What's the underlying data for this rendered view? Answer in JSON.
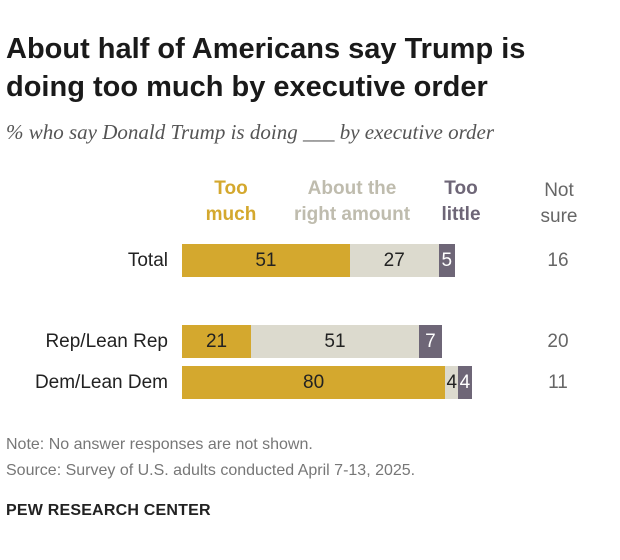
{
  "title": "About half of Americans say Trump is doing too much by executive order",
  "subtitle": "% who say Donald Trump is doing ___ by executive order",
  "colors": {
    "too_much": "#d4a82e",
    "right_amount": "#dcdace",
    "too_little": "#6e6677",
    "header_too_much": "#d4a82e",
    "header_right_amount": "#bfbcae",
    "header_too_little": "#6e6677",
    "not_sure": "#666666"
  },
  "headers": {
    "too_much": "Too\nmuch",
    "right_amount": "About the\nright amount",
    "too_little": "Too\nlittle",
    "not_sure": "Not\nsure"
  },
  "chart_data": {
    "type": "bar",
    "orientation": "horizontal",
    "stacked": true,
    "categories": [
      "Total",
      "Rep/Lean Rep",
      "Dem/Lean Dem"
    ],
    "series": [
      {
        "name": "Too much",
        "values": [
          51,
          21,
          80
        ]
      },
      {
        "name": "About the right amount",
        "values": [
          27,
          51,
          4
        ]
      },
      {
        "name": "Too little",
        "values": [
          5,
          7,
          4
        ]
      }
    ],
    "not_sure": [
      16,
      20,
      11
    ],
    "title": "About half of Americans say Trump is doing too much by executive order",
    "xlabel": "",
    "ylabel": "",
    "xlim": [
      0,
      100
    ],
    "units": "%"
  },
  "notes": {
    "note": "Note: No answer responses are not shown.",
    "source": "Source: Survey of U.S. adults conducted April 7-13, 2025."
  },
  "footer": "PEW RESEARCH CENTER"
}
